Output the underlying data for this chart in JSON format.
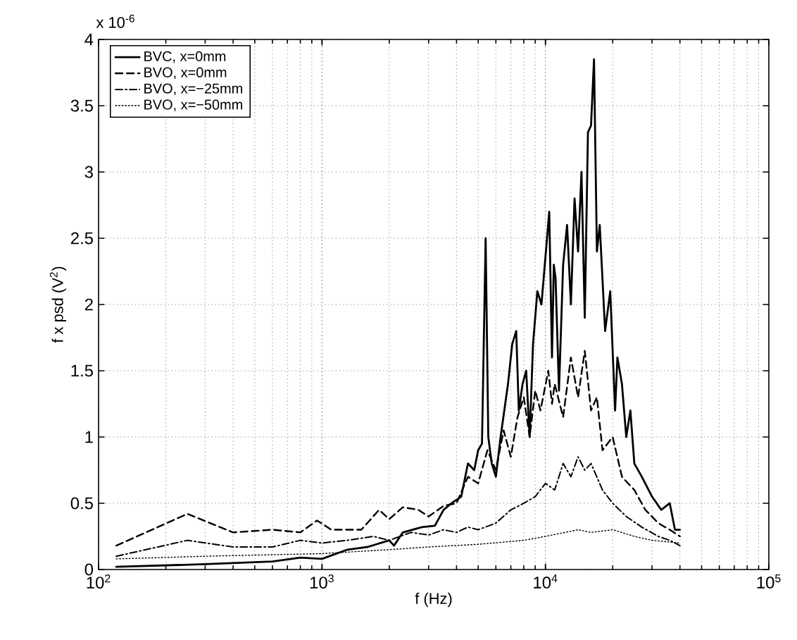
{
  "chart_data": {
    "type": "line",
    "xlabel": "f (Hz)",
    "ylabel": "f x psd (V$^{2}$)",
    "annotations": [
      "x 10$^{-6}$"
    ],
    "log": "x",
    "grid": true,
    "legend": "top left",
    "xlim": [
      100,
      100000
    ],
    "xticks": [
      {
        "value": 100,
        "label": "10$^{2}$"
      },
      {
        "value": 1000,
        "label": "10$^{3}$"
      },
      {
        "value": 10000,
        "label": "10$^{4}$"
      },
      {
        "value": 100000,
        "label": "10$^{5}$"
      }
    ],
    "ylim": [
      0,
      4
    ],
    "yticks": [
      0,
      0.5,
      1,
      1.5,
      2,
      2.5,
      3,
      3.5,
      4
    ],
    "series": [
      {
        "name": "BVC, x=0mm",
        "color": "#000000",
        "line_style": "solid",
        "x": [
          120,
          300,
          600,
          800,
          1000,
          1300,
          1600,
          2000,
          2100,
          2300,
          2800,
          3200,
          3500,
          3800,
          4200,
          4500,
          4800,
          5000,
          5200,
          5400,
          5550,
          5750,
          6000,
          6300,
          6800,
          7100,
          7400,
          7600,
          7900,
          8200,
          8500,
          8800,
          9200,
          9600,
          10400,
          10700,
          10900,
          11100,
          11500,
          12000,
          12500,
          13000,
          13500,
          14000,
          14500,
          15000,
          15500,
          16000,
          16500,
          17000,
          17500,
          18500,
          19500,
          20500,
          21000,
          22000,
          23000,
          24000,
          25000,
          27000,
          30000,
          33000,
          36000,
          38000,
          40000
        ],
        "values": [
          0.02,
          0.04,
          0.06,
          0.09,
          0.08,
          0.15,
          0.17,
          0.22,
          0.18,
          0.28,
          0.32,
          0.33,
          0.45,
          0.5,
          0.55,
          0.8,
          0.75,
          0.9,
          0.95,
          2.5,
          1.0,
          0.8,
          0.7,
          1.0,
          1.4,
          1.7,
          1.8,
          1.2,
          1.4,
          1.5,
          1.0,
          1.7,
          2.1,
          2.0,
          2.7,
          1.6,
          2.3,
          2.2,
          1.35,
          2.3,
          2.6,
          2.0,
          2.8,
          2.4,
          3.0,
          1.9,
          3.3,
          3.35,
          3.85,
          2.4,
          2.6,
          1.8,
          2.1,
          1.2,
          1.6,
          1.4,
          1.0,
          1.2,
          0.8,
          0.7,
          0.55,
          0.45,
          0.5,
          0.3,
          0.3
        ]
      },
      {
        "name": "BVO, x=0mm",
        "color": "#000000",
        "line_style": "dashed",
        "x": [
          120,
          250,
          400,
          600,
          800,
          950,
          1100,
          1500,
          1800,
          2000,
          2300,
          2700,
          3000,
          3500,
          4000,
          4500,
          5000,
          5500,
          6000,
          6500,
          7000,
          7500,
          8000,
          8500,
          9000,
          9500,
          10300,
          10700,
          11000,
          12000,
          13000,
          14000,
          15000,
          16000,
          17000,
          18000,
          20000,
          22000,
          25000,
          28000,
          32000,
          36000,
          40000
        ],
        "values": [
          0.18,
          0.42,
          0.28,
          0.3,
          0.28,
          0.37,
          0.3,
          0.3,
          0.45,
          0.38,
          0.47,
          0.45,
          0.4,
          0.48,
          0.5,
          0.7,
          0.65,
          0.9,
          0.75,
          1.05,
          0.85,
          1.15,
          1.3,
          1.0,
          1.35,
          1.2,
          1.5,
          1.25,
          1.4,
          1.15,
          1.6,
          1.3,
          1.65,
          1.2,
          1.3,
          0.9,
          1.0,
          0.7,
          0.6,
          0.45,
          0.35,
          0.3,
          0.25
        ]
      },
      {
        "name": "BVO, x=−25mm",
        "color": "#000000",
        "line_style": "dashdot",
        "x": [
          120,
          250,
          400,
          600,
          800,
          1000,
          1300,
          1700,
          2000,
          2500,
          3000,
          3500,
          4000,
          4500,
          5000,
          6000,
          7000,
          8000,
          9000,
          10000,
          11000,
          12000,
          13000,
          14000,
          15000,
          16000,
          18000,
          20000,
          23000,
          27000,
          32000,
          36000,
          40000
        ],
        "values": [
          0.1,
          0.22,
          0.17,
          0.17,
          0.22,
          0.2,
          0.22,
          0.25,
          0.22,
          0.28,
          0.26,
          0.3,
          0.28,
          0.32,
          0.3,
          0.35,
          0.45,
          0.5,
          0.55,
          0.65,
          0.6,
          0.8,
          0.7,
          0.85,
          0.75,
          0.8,
          0.6,
          0.5,
          0.4,
          0.32,
          0.25,
          0.22,
          0.18
        ]
      },
      {
        "name": "BVO, x=−50mm",
        "color": "#000000",
        "line_style": "dotted",
        "x": [
          120,
          300,
          1000,
          2000,
          3000,
          5000,
          8000,
          10000,
          14000,
          16000,
          20000,
          25000,
          30000,
          40000
        ],
        "values": [
          0.08,
          0.1,
          0.12,
          0.15,
          0.17,
          0.19,
          0.22,
          0.25,
          0.3,
          0.28,
          0.3,
          0.25,
          0.22,
          0.2
        ]
      }
    ]
  }
}
